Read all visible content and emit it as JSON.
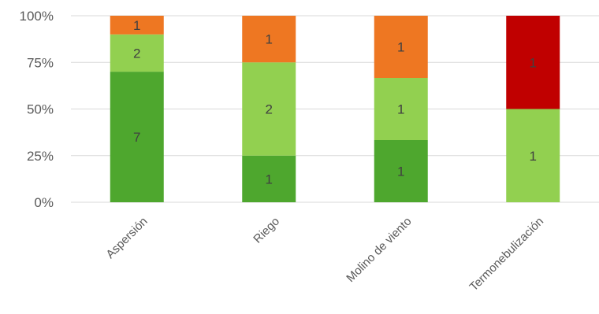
{
  "chart_data": {
    "type": "bar",
    "stacked": true,
    "normalized": true,
    "categories": [
      "Aspersión",
      "Riego",
      "Molino de viento",
      "Termonebulización"
    ],
    "series": [
      {
        "color": "#4ea72e",
        "values": [
          7,
          1,
          1,
          0
        ]
      },
      {
        "color": "#92d050",
        "values": [
          2,
          2,
          1,
          1
        ]
      },
      {
        "color": "#ee7722",
        "values": [
          1,
          1,
          1,
          0
        ]
      },
      {
        "color": "#c00000",
        "values": [
          0,
          0,
          0,
          1
        ]
      }
    ],
    "y_ticks": [
      "0%",
      "25%",
      "50%",
      "75%",
      "100%"
    ],
    "ylim": [
      0,
      100
    ],
    "grid": true,
    "legend": "none"
  }
}
